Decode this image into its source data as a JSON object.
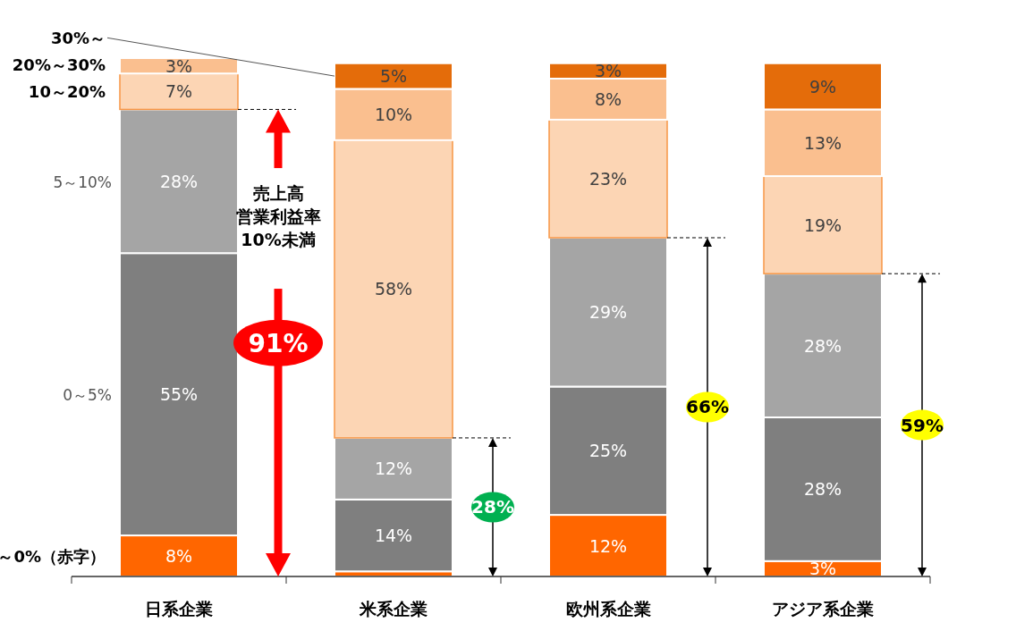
{
  "chart_data": {
    "type": "bar",
    "stacked": true,
    "categories": [
      "日系企業",
      "米系企業",
      "欧州系企業",
      "アジア系企業"
    ],
    "series": [
      {
        "name": "～0%（赤字）",
        "color": "#ff6600",
        "values": [
          8,
          1,
          12,
          3
        ],
        "value_labels": [
          "8%",
          null,
          "12%",
          "3%"
        ]
      },
      {
        "name": "0～5%",
        "color": "#7f7f7f",
        "values": [
          55,
          14,
          25,
          28
        ],
        "value_labels": [
          "55%",
          "14%",
          "25%",
          "28%"
        ]
      },
      {
        "name": "5～10%",
        "color": "#a5a5a5",
        "values": [
          28,
          12,
          29,
          28
        ],
        "value_labels": [
          "28%",
          "12%",
          "29%",
          "28%"
        ]
      },
      {
        "name": "10～20%",
        "color": "#fcd5b4",
        "values": [
          7,
          58,
          23,
          19
        ],
        "value_labels": [
          "7%",
          "58%",
          "23%",
          "19%"
        ]
      },
      {
        "name": "20%～30%",
        "color": "#fabf8f",
        "values": [
          3,
          10,
          8,
          13
        ],
        "value_labels": [
          "3%",
          "10%",
          "8%",
          "13%"
        ]
      },
      {
        "name": "30%～",
        "color": "#e46c0a",
        "values": [
          null,
          5,
          3,
          9
        ],
        "value_labels": [
          null,
          "5%",
          "3%",
          "9%"
        ]
      }
    ],
    "annotations": [
      "売上高",
      "営業利益率",
      "10%未満",
      "91%",
      "28%",
      "66%",
      "59%"
    ]
  }
}
